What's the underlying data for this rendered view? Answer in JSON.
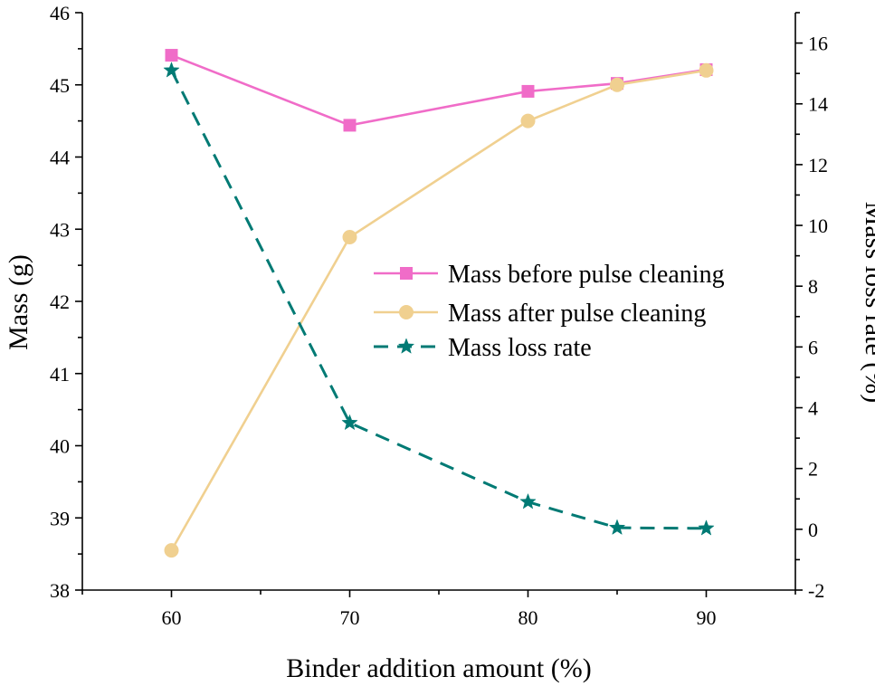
{
  "chart_data": {
    "type": "line",
    "x": [
      60,
      70,
      80,
      85,
      90
    ],
    "xlabel": "Binder addition amount (%)",
    "ylabel_left": "Mass (g)",
    "ylabel_right": "Mass loss rate (%)",
    "xlim": [
      55,
      95
    ],
    "ylim_left": [
      38,
      46
    ],
    "ylim_right": [
      -2,
      17
    ],
    "x_ticks": [
      60,
      70,
      80,
      90
    ],
    "y_left_ticks": [
      38,
      39,
      40,
      41,
      42,
      43,
      44,
      45,
      46
    ],
    "y_right_ticks": [
      -2,
      0,
      2,
      4,
      6,
      8,
      10,
      12,
      14,
      16
    ],
    "series": [
      {
        "name": "Mass before pulse cleaning",
        "axis": "left",
        "values": [
          45.41,
          44.44,
          44.91,
          45.02,
          45.21
        ],
        "color": "#f06cc8",
        "marker": "square",
        "line_style": "solid"
      },
      {
        "name": "Mass after pulse cleaning",
        "axis": "left",
        "values": [
          38.55,
          42.89,
          44.5,
          45.0,
          45.2
        ],
        "color": "#f0d090",
        "marker": "circle",
        "line_style": "solid"
      },
      {
        "name": "Mass loss rate",
        "axis": "right",
        "values": [
          15.1,
          3.5,
          0.9,
          0.05,
          0.03
        ],
        "color": "#007a74",
        "marker": "star",
        "line_style": "dashed"
      }
    ],
    "legend_position": "center-right"
  }
}
